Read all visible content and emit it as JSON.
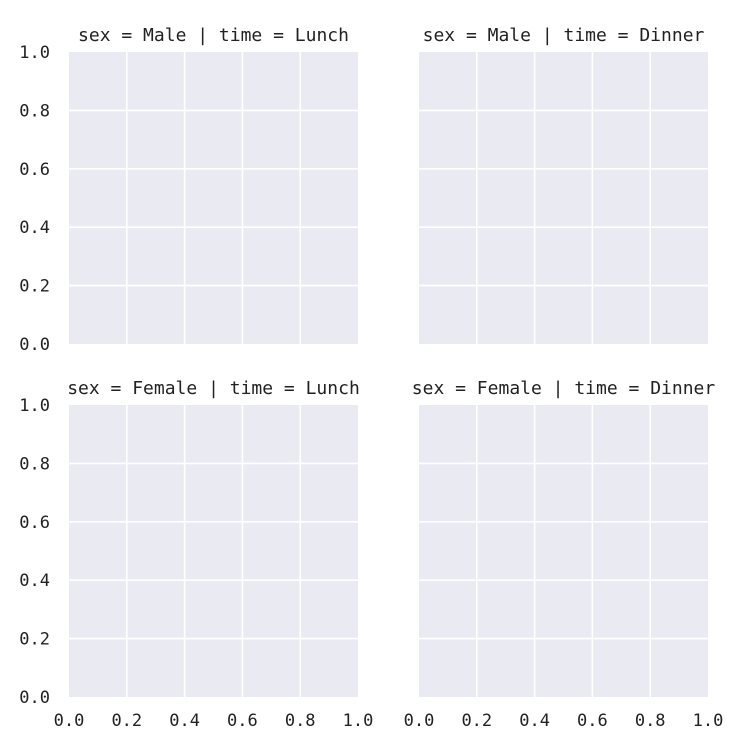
{
  "chart_data": {
    "type": "scatter",
    "layout": "facet-grid",
    "rows": 2,
    "cols": 2,
    "xlim": [
      0.0,
      1.0
    ],
    "ylim": [
      0.0,
      1.0
    ],
    "x_ticks": [
      "0.0",
      "0.2",
      "0.4",
      "0.6",
      "0.8",
      "1.0"
    ],
    "y_ticks": [
      "0.0",
      "0.2",
      "0.4",
      "0.6",
      "0.8",
      "1.0"
    ],
    "grid": true,
    "colors": {
      "plot_background": "#eaeaf2",
      "grid": "#ffffff",
      "text": "#222222"
    },
    "facets": [
      {
        "title": "sex = Male | time = Lunch",
        "series": []
      },
      {
        "title": "sex = Male | time = Dinner",
        "series": []
      },
      {
        "title": "sex = Female | time = Lunch",
        "series": []
      },
      {
        "title": "sex = Female | time = Dinner",
        "series": []
      }
    ]
  }
}
